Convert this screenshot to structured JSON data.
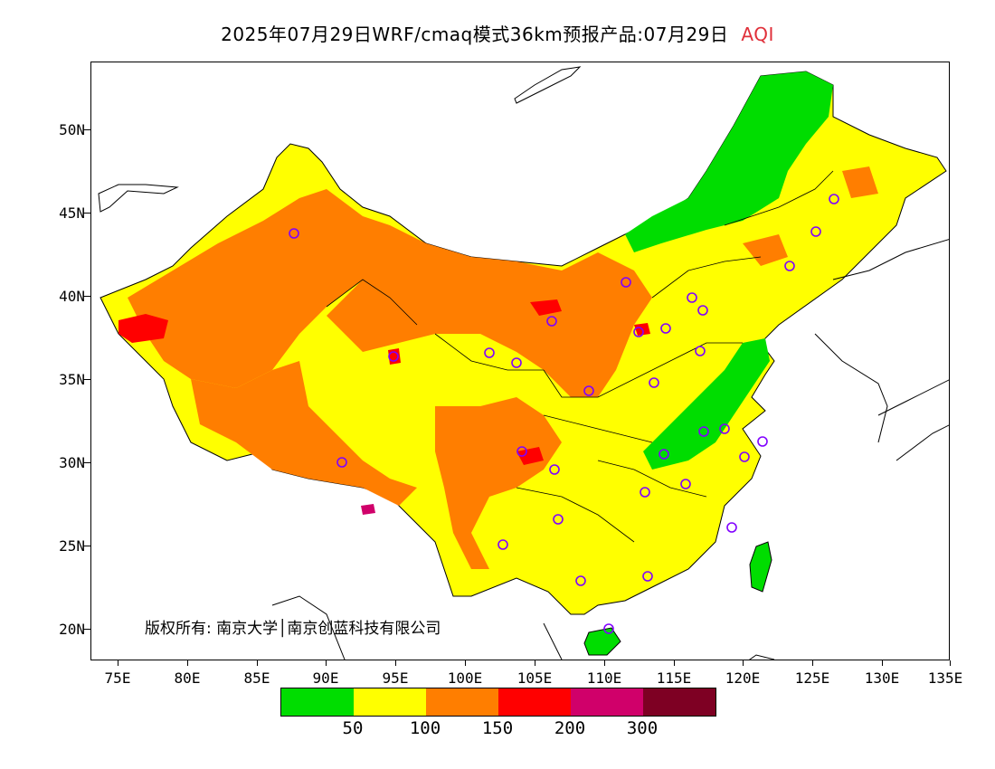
{
  "title": {
    "main": "2025年07月29日WRF/cmaq模式36km预报产品:07月29日",
    "variable": "AQI",
    "variable_color": "#e0303a"
  },
  "axes": {
    "y_ticks": [
      "50N",
      "45N",
      "40N",
      "35N",
      "30N",
      "25N",
      "20N"
    ],
    "x_ticks": [
      "75E",
      "80E",
      "85E",
      "90E",
      "95E",
      "100E",
      "105E",
      "110E",
      "115E",
      "120E",
      "125E",
      "130E",
      "135E"
    ]
  },
  "copyright": "版权所有: 南京大学│南京创蓝科技有限公司",
  "legend": {
    "colors": [
      "#00dd00",
      "#ffff00",
      "#ff7e00",
      "#ff0000",
      "#d0006a",
      "#7e0023"
    ],
    "labels": [
      "50",
      "100",
      "150",
      "200",
      "300"
    ]
  }
}
